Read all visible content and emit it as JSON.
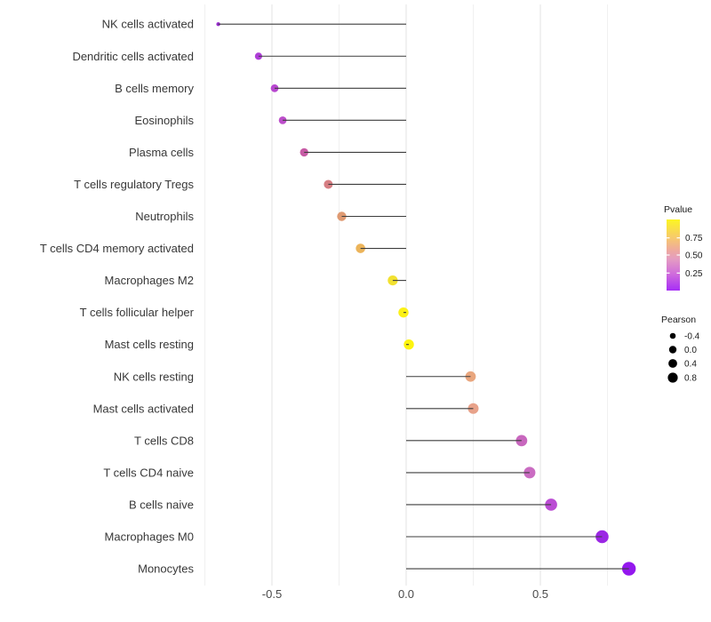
{
  "chart_data": {
    "type": "scatter",
    "subtype": "lollipop",
    "orientation": "horizontal",
    "title": "",
    "xlabel": "",
    "ylabel": "",
    "xlim": [
      -0.78,
      0.93
    ],
    "x_tick_labels": [
      "-0.5",
      "0.0",
      "0.5"
    ],
    "x_tick_values": [
      -0.5,
      0.0,
      0.5
    ],
    "major_gridlines": [
      -0.5,
      0.0,
      0.5
    ],
    "minor_gridlines": [
      -0.75,
      -0.25,
      0.25,
      0.75
    ],
    "grid": "vertical-only",
    "legend_position": "right",
    "categories": [
      "NK cells activated",
      "Dendritic cells activated",
      "B cells memory",
      "Eosinophils",
      "Plasma cells",
      "T cells regulatory  Tregs",
      "Neutrophils",
      "T cells CD4 memory activated",
      "Macrophages M2",
      "T cells follicular helper",
      "Mast cells resting",
      "NK cells resting",
      "Mast cells activated",
      "T cells CD8",
      "T cells CD4 naive",
      "B cells naive",
      "Macrophages M0",
      "Monocytes"
    ],
    "series": [
      {
        "name": "Pearson",
        "values": [
          -0.7,
          -0.55,
          -0.49,
          -0.46,
          -0.38,
          -0.29,
          -0.24,
          -0.17,
          -0.05,
          -0.01,
          0.01,
          0.24,
          0.25,
          0.43,
          0.46,
          0.54,
          0.73,
          0.83
        ]
      }
    ],
    "point_colors": [
      "#9b2fd1",
      "#af3ed8",
      "#b847d0",
      "#bd4ecb",
      "#c75ba5",
      "#d67e83",
      "#df9a72",
      "#ecb45a",
      "#f2e130",
      "#fbf116",
      "#fdf40e",
      "#e9a67e",
      "#e8a28a",
      "#c867be",
      "#ca6cc2",
      "#bb4cd4",
      "#9b27e4",
      "#9418ee"
    ],
    "point_radii": [
      2.2,
      4.1,
      4.4,
      4.4,
      4.7,
      5.0,
      5.2,
      5.3,
      5.6,
      5.7,
      5.7,
      5.9,
      6.0,
      6.4,
      6.5,
      6.8,
      7.3,
      7.7
    ],
    "stick_color": "#3d3d3d",
    "axis_text_color": "#4a4a4a",
    "label_text_color": "#383838",
    "legend": {
      "pvalue": {
        "title": "Pvalue",
        "tick_labels": [
          "0.75",
          "0.50",
          "0.25"
        ],
        "gradient_stops": [
          "#fcf522",
          "#f7cb6b",
          "#efab9b",
          "#e49cc2",
          "#cf6bdc",
          "#a62df6"
        ],
        "gradient_offsets": [
          0,
          0.25,
          0.42,
          0.56,
          0.77,
          1
        ]
      },
      "pearson": {
        "title": "Pearson",
        "items": [
          {
            "label": "-0.4",
            "r": 3.3
          },
          {
            "label": "0.0",
            "r": 4.2
          },
          {
            "label": "0.4",
            "r": 4.9
          },
          {
            "label": "0.8",
            "r": 5.6
          }
        ],
        "dot_color": "#000000"
      }
    }
  }
}
